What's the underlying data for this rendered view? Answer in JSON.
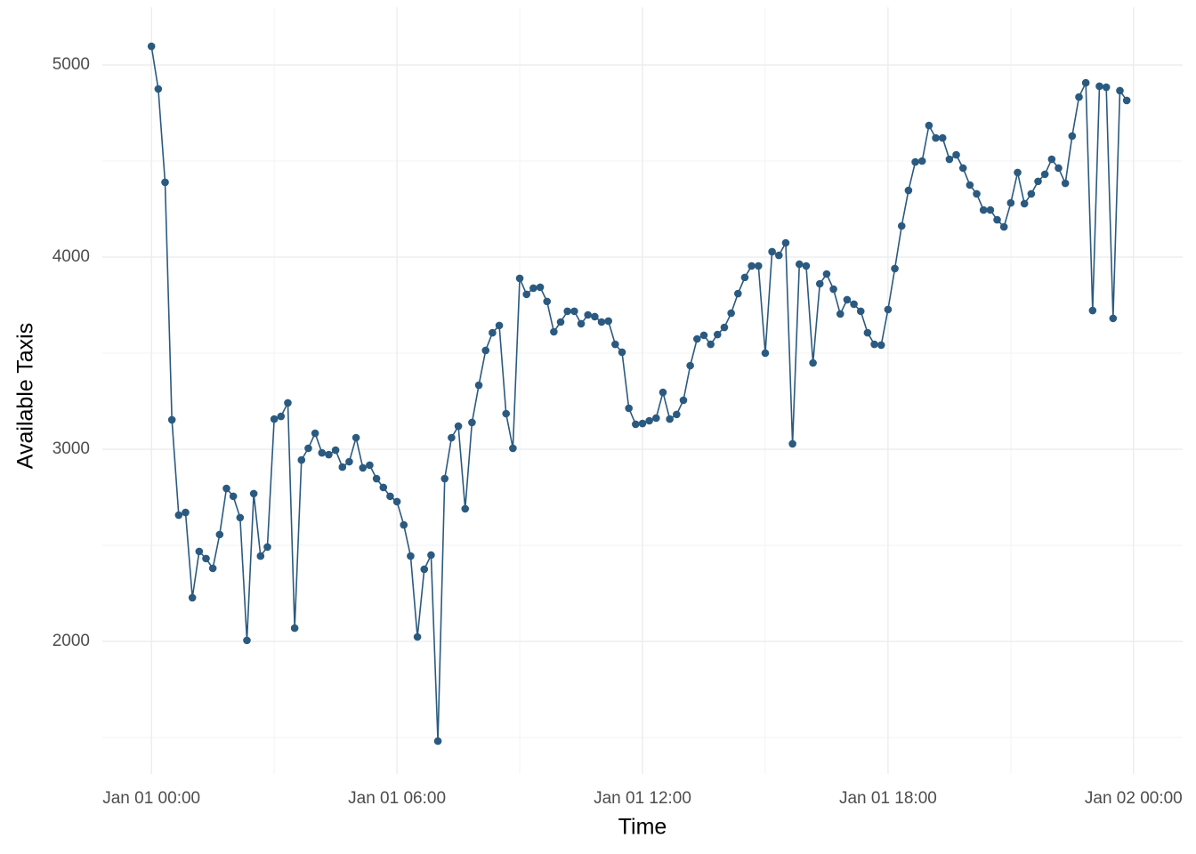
{
  "chart_data": {
    "type": "line",
    "x_label": "Time",
    "y_label": "Available Taxis",
    "x": [
      0,
      10,
      20,
      30,
      40,
      50,
      60,
      70,
      80,
      90,
      100,
      110,
      120,
      130,
      140,
      150,
      160,
      170,
      180,
      190,
      200,
      210,
      220,
      230,
      240,
      250,
      260,
      270,
      280,
      290,
      300,
      310,
      320,
      330,
      340,
      350,
      360,
      370,
      380,
      390,
      400,
      410,
      420,
      430,
      440,
      450,
      460,
      470,
      480,
      490,
      500,
      510,
      520,
      530,
      540,
      550,
      560,
      570,
      580,
      590,
      600,
      610,
      620,
      630,
      640,
      650,
      660,
      670,
      680,
      690,
      700,
      710,
      720,
      730,
      740,
      750,
      760,
      770,
      780,
      790,
      800,
      810,
      820,
      830,
      840,
      850,
      860,
      870,
      880,
      890,
      900,
      910,
      920,
      930,
      940,
      950,
      960,
      970,
      980,
      990,
      1000,
      1010,
      1020,
      1030,
      1040,
      1050,
      1060,
      1070,
      1080,
      1090,
      1100,
      1110,
      1120,
      1130,
      1140,
      1150,
      1160,
      1170,
      1180,
      1190,
      1200,
      1210,
      1220,
      1230,
      1240,
      1250,
      1260,
      1270,
      1280,
      1290,
      1300,
      1310,
      1320,
      1330,
      1340,
      1350,
      1360,
      1370,
      1380,
      1390,
      1400,
      1410,
      1420,
      1430
    ],
    "series": [
      {
        "color": "#2b5a80",
        "values": [
          5097,
          4875,
          4389,
          3153,
          2657,
          2671,
          2227,
          2468,
          2431,
          2380,
          2556,
          2796,
          2755,
          2644,
          2005,
          2769,
          2444,
          2491,
          3157,
          3171,
          3241,
          2069,
          2944,
          3005,
          3083,
          2981,
          2972,
          2995,
          2907,
          2935,
          3060,
          2903,
          2917,
          2847,
          2801,
          2755,
          2727,
          2606,
          2444,
          2023,
          2375,
          2449,
          1481,
          2847,
          3060,
          3120,
          2690,
          3139,
          3333,
          3514,
          3606,
          3644,
          3185,
          3005,
          3889,
          3806,
          3838,
          3843,
          3769,
          3611,
          3662,
          3718,
          3718,
          3653,
          3699,
          3690,
          3662,
          3667,
          3546,
          3505,
          3213,
          3130,
          3134,
          3148,
          3162,
          3296,
          3157,
          3181,
          3255,
          3435,
          3574,
          3593,
          3546,
          3597,
          3634,
          3708,
          3810,
          3894,
          3954,
          3954,
          3500,
          4028,
          4009,
          4074,
          3028,
          3963,
          3954,
          3449,
          3861,
          3912,
          3833,
          3704,
          3778,
          3755,
          3718,
          3606,
          3546,
          3542,
          3727,
          3940,
          4162,
          4347,
          4495,
          4500,
          4685,
          4620,
          4620,
          4509,
          4532,
          4463,
          4375,
          4329,
          4245,
          4245,
          4194,
          4157,
          4282,
          4440,
          4278,
          4329,
          4394,
          4431,
          4509,
          4463,
          4384,
          4630,
          4833,
          4907,
          3722,
          4889,
          4884,
          3681,
          4866,
          4815
        ]
      }
    ],
    "xlim": [
      -72,
      1512
    ],
    "xticks": [
      {
        "value": 0,
        "label": "Jan 01 00:00"
      },
      {
        "value": 360,
        "label": "Jan 01 06:00"
      },
      {
        "value": 720,
        "label": "Jan 01 12:00"
      },
      {
        "value": 1080,
        "label": "Jan 01 18:00"
      },
      {
        "value": 1440,
        "label": "Jan 02 00:00"
      }
    ],
    "ylim": [
      1310,
      5300
    ],
    "yticks": [
      2000,
      3000,
      4000,
      5000
    ],
    "grid": true
  }
}
